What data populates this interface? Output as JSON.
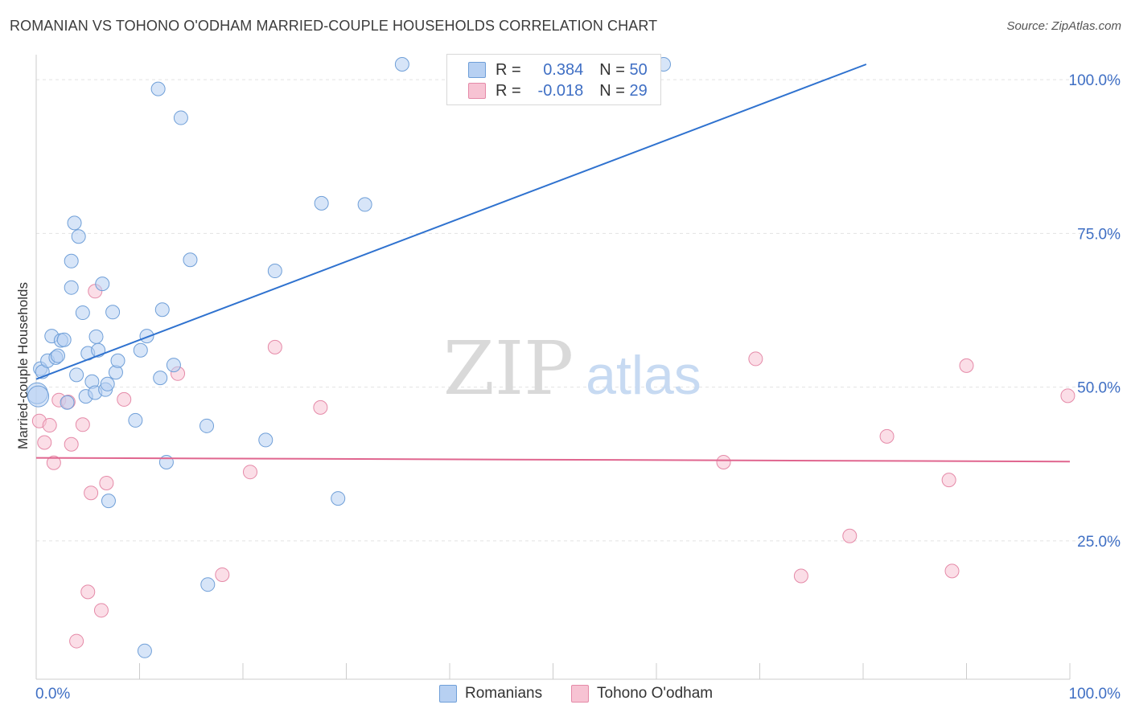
{
  "title": "ROMANIAN VS TOHONO O'ODHAM MARRIED-COUPLE HOUSEHOLDS CORRELATION CHART",
  "source": "Source: ZipAtlas.com",
  "watermark": {
    "zip": "ZIP",
    "atlas": "atlas"
  },
  "legend_stats": [
    {
      "r_label": "R =",
      "r_value": "0.384",
      "n_label": "N =",
      "n_value": "50"
    },
    {
      "r_label": "R =",
      "r_value": "-0.018",
      "n_label": "N =",
      "n_value": "29"
    }
  ],
  "colors": {
    "romanians_fill": "#b7d0f2",
    "romanians_stroke": "#6f9fd8",
    "romanians_line": "#2f72cf",
    "tohono_fill": "#f7c3d3",
    "tohono_stroke": "#e58aa8",
    "tohono_line": "#e0668f",
    "axis_text": "#3f6fc4"
  },
  "chart_data": {
    "type": "scatter",
    "title": "ROMANIAN VS TOHONO O'ODHAM MARRIED-COUPLE HOUSEHOLDS CORRELATION CHART",
    "xlabel": "",
    "ylabel": "Married-couple Households",
    "xlim": [
      0,
      100
    ],
    "ylim": [
      0,
      100
    ],
    "x_tick_labels": [
      "0.0%",
      "100.0%"
    ],
    "y_tick_labels": [
      "25.0%",
      "50.0%",
      "75.0%",
      "100.0%"
    ],
    "y_ticks": [
      25,
      50,
      75,
      100
    ],
    "x_ticks": [
      0,
      10,
      20,
      30,
      40,
      50,
      60,
      70,
      80,
      90,
      100
    ],
    "legend": [
      "Romanians",
      "Tohono O'odham"
    ],
    "series": [
      {
        "name": "Romanians",
        "trend": {
          "x": [
            0,
            80.3
          ],
          "y": [
            48.8,
            100
          ]
        },
        "points": [
          [
            0.1,
            46.5
          ],
          [
            0.2,
            46.0
          ],
          [
            0.4,
            50.5
          ],
          [
            0.6,
            50.0
          ],
          [
            1.1,
            51.8
          ],
          [
            1.5,
            55.8
          ],
          [
            1.9,
            52.3
          ],
          [
            2.1,
            52.6
          ],
          [
            2.4,
            55.1
          ],
          [
            2.7,
            55.2
          ],
          [
            3.0,
            45.0
          ],
          [
            3.4,
            63.7
          ],
          [
            3.4,
            68.0
          ],
          [
            3.7,
            74.2
          ],
          [
            3.9,
            49.5
          ],
          [
            4.1,
            72.0
          ],
          [
            4.5,
            59.6
          ],
          [
            4.8,
            46.0
          ],
          [
            5.0,
            53.0
          ],
          [
            5.4,
            48.4
          ],
          [
            5.7,
            46.6
          ],
          [
            5.8,
            55.7
          ],
          [
            6.0,
            53.5
          ],
          [
            6.4,
            64.3
          ],
          [
            6.7,
            47.1
          ],
          [
            6.9,
            48.0
          ],
          [
            7.0,
            29.0
          ],
          [
            7.4,
            59.7
          ],
          [
            7.7,
            49.9
          ],
          [
            7.9,
            51.8
          ],
          [
            9.6,
            42.1
          ],
          [
            10.1,
            53.5
          ],
          [
            10.5,
            4.6
          ],
          [
            10.7,
            55.8
          ],
          [
            11.8,
            96.0
          ],
          [
            12.0,
            49.0
          ],
          [
            12.2,
            60.1
          ],
          [
            12.6,
            35.3
          ],
          [
            13.3,
            51.1
          ],
          [
            14.0,
            91.3
          ],
          [
            14.9,
            68.2
          ],
          [
            16.5,
            41.2
          ],
          [
            16.6,
            15.4
          ],
          [
            22.2,
            38.9
          ],
          [
            23.1,
            66.4
          ],
          [
            27.6,
            77.4
          ],
          [
            29.2,
            29.4
          ],
          [
            31.8,
            77.2
          ],
          [
            35.4,
            100.0
          ],
          [
            60.7,
            100.0
          ]
        ]
      },
      {
        "name": "Tohono O'odham",
        "trend": {
          "x": [
            0,
            100
          ],
          "y": [
            36.0,
            35.4
          ]
        },
        "points": [
          [
            0.3,
            42.0
          ],
          [
            0.8,
            38.5
          ],
          [
            1.3,
            41.3
          ],
          [
            1.7,
            35.2
          ],
          [
            2.2,
            45.4
          ],
          [
            3.4,
            38.2
          ],
          [
            3.9,
            6.2
          ],
          [
            4.5,
            41.4
          ],
          [
            5.0,
            14.2
          ],
          [
            5.3,
            30.3
          ],
          [
            5.7,
            63.1
          ],
          [
            6.3,
            11.2
          ],
          [
            6.8,
            31.9
          ],
          [
            8.5,
            45.5
          ],
          [
            13.7,
            49.7
          ],
          [
            18.0,
            17.0
          ],
          [
            20.7,
            33.7
          ],
          [
            23.1,
            54.0
          ],
          [
            27.5,
            44.2
          ],
          [
            66.5,
            35.3
          ],
          [
            69.6,
            52.1
          ],
          [
            74.0,
            16.8
          ],
          [
            78.7,
            23.3
          ],
          [
            82.3,
            39.5
          ],
          [
            88.3,
            32.4
          ],
          [
            88.6,
            17.6
          ],
          [
            90.0,
            51.0
          ],
          [
            99.8,
            46.1
          ],
          [
            3.1,
            45.1
          ]
        ]
      }
    ]
  }
}
